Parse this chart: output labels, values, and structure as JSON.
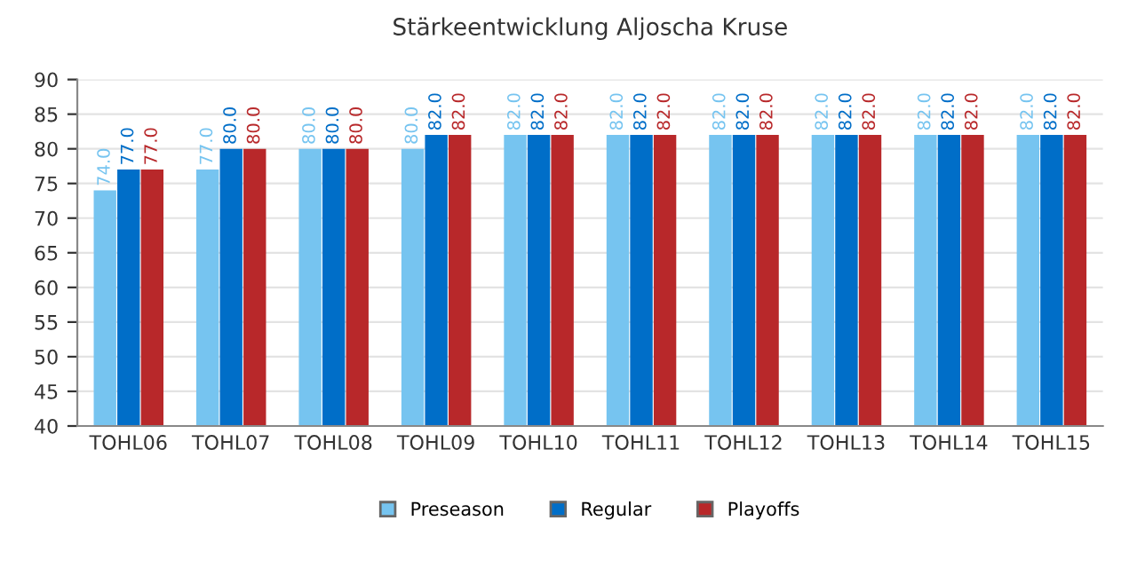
{
  "chart_data": {
    "type": "bar",
    "title": "Stärkeentwicklung Aljoscha Kruse",
    "categories": [
      "TOHL06",
      "TOHL07",
      "TOHL08",
      "TOHL09",
      "TOHL10",
      "TOHL11",
      "TOHL12",
      "TOHL13",
      "TOHL14",
      "TOHL15"
    ],
    "series": [
      {
        "name": "Preseason",
        "color": "#76c4f0",
        "values": [
          74,
          77,
          80,
          80,
          82,
          82,
          82,
          82,
          82,
          82
        ],
        "value_labels": [
          "74.0",
          "77.0",
          "80.0",
          "80.0",
          "82.0",
          "82.0",
          "82.0",
          "82.0",
          "82.0",
          "82.0"
        ]
      },
      {
        "name": "Regular",
        "color": "#006ec8",
        "values": [
          77,
          80,
          80,
          82,
          82,
          82,
          82,
          82,
          82,
          82
        ],
        "value_labels": [
          "77.0",
          "80.0",
          "80.0",
          "82.0",
          "82.0",
          "82.0",
          "82.0",
          "82.0",
          "82.0",
          "82.0"
        ]
      },
      {
        "name": "Playoffs",
        "color": "#b8282a",
        "values": [
          77,
          80,
          80,
          82,
          82,
          82,
          82,
          82,
          82,
          82
        ],
        "value_labels": [
          "77.0",
          "80.0",
          "80.0",
          "82.0",
          "82.0",
          "82.0",
          "82.0",
          "82.0",
          "82.0",
          "82.0"
        ]
      }
    ],
    "ylim": [
      40,
      90
    ],
    "yticks": [
      40,
      45,
      50,
      55,
      60,
      65,
      70,
      75,
      80,
      85,
      90
    ],
    "grid": "y",
    "legend": "bottom"
  }
}
